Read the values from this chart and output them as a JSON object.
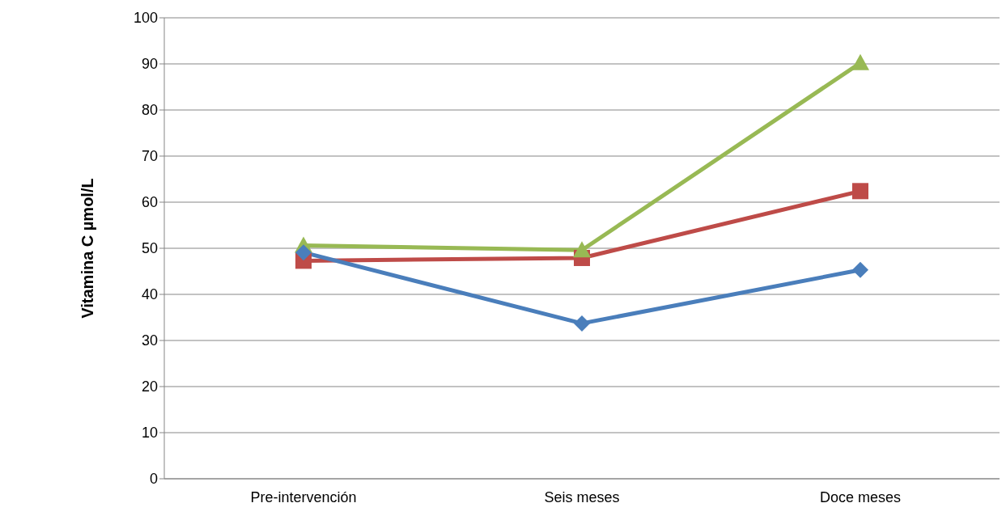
{
  "chart_data": {
    "type": "line",
    "ylabel": "Vitamina C µmol/L",
    "categories": [
      "Pre-intervención",
      "Seis meses",
      "Doce meses"
    ],
    "series": [
      {
        "color": "#4a7ebb",
        "marker": "diamond",
        "values": [
          49.1,
          33.7,
          45.3
        ]
      },
      {
        "color": "#be4b48",
        "marker": "square",
        "values": [
          47.3,
          47.9,
          62.4
        ]
      },
      {
        "color": "#98b954",
        "marker": "triangle",
        "values": [
          50.6,
          49.6,
          90.2
        ]
      }
    ],
    "ylim": [
      0,
      100
    ],
    "yticks": [
      0,
      10,
      20,
      30,
      40,
      50,
      60,
      70,
      80,
      90,
      100
    ],
    "grid": "y",
    "legend": false
  }
}
